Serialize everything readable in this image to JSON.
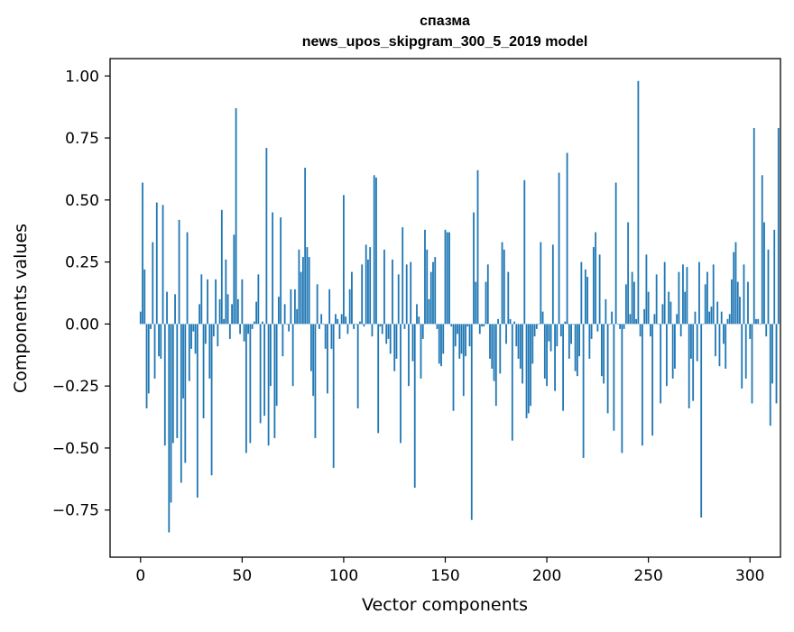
{
  "chart_data": {
    "type": "bar",
    "title": "спазма",
    "subtitle": "news_upos_skipgram_300_5_2019 model",
    "xlabel": "Vector components",
    "ylabel": "Components values",
    "xlim": [
      -15,
      315
    ],
    "ylim": [
      -0.94,
      1.07
    ],
    "x_ticks": [
      0,
      50,
      100,
      150,
      200,
      250,
      300
    ],
    "x_tick_labels": [
      "0",
      "50",
      "100",
      "150",
      "200",
      "250",
      "300"
    ],
    "y_ticks": [
      -0.75,
      -0.5,
      -0.25,
      0.0,
      0.25,
      0.5,
      0.75,
      1.0
    ],
    "y_tick_labels": [
      "−0.75",
      "−0.50",
      "−0.25",
      "0.00",
      "0.25",
      "0.50",
      "0.75",
      "1.00"
    ],
    "grid": false,
    "bar_color": "#1f77b4",
    "values": [
      0.05,
      0.57,
      0.22,
      -0.34,
      -0.28,
      -0.02,
      0.33,
      -0.22,
      0.49,
      -0.13,
      -0.14,
      0.48,
      -0.49,
      0.13,
      -0.84,
      -0.72,
      -0.48,
      0.12,
      -0.46,
      0.42,
      -0.64,
      -0.3,
      -0.56,
      0.37,
      -0.23,
      -0.1,
      -0.03,
      -0.12,
      -0.7,
      0.08,
      0.2,
      -0.38,
      -0.08,
      0.18,
      -0.22,
      -0.61,
      -0.05,
      0.18,
      -0.09,
      0.1,
      0.46,
      0.02,
      0.26,
      0.12,
      -0.06,
      0.08,
      0.36,
      0.87,
      0.1,
      -0.04,
      0.18,
      -0.07,
      -0.52,
      -0.04,
      -0.48,
      -0.02,
      0.01,
      0.09,
      0.2,
      -0.4,
      0.01,
      -0.37,
      0.71,
      -0.49,
      -0.25,
      0.45,
      -0.46,
      -0.33,
      0.11,
      0.43,
      -0.13,
      0.08,
      0.0,
      -0.03,
      0.14,
      -0.25,
      0.14,
      0.06,
      0.3,
      0.21,
      0.27,
      0.63,
      0.31,
      0.27,
      -0.19,
      -0.29,
      -0.46,
      0.16,
      -0.02,
      0.04,
      0.0,
      -0.1,
      -0.28,
      0.14,
      -0.1,
      -0.58,
      0.04,
      0.02,
      -0.06,
      0.04,
      0.52,
      0.03,
      -0.04,
      0.14,
      0.21,
      -0.02,
      0.0,
      -0.34,
      0.01,
      0.24,
      -0.01,
      0.32,
      0.26,
      0.31,
      -0.05,
      0.6,
      0.59,
      -0.44,
      -0.01,
      -0.04,
      0.3,
      -0.08,
      -0.06,
      -0.12,
      0.26,
      -0.19,
      -0.14,
      0.2,
      -0.48,
      0.39,
      -0.02,
      0.24,
      -0.25,
      0.25,
      -0.15,
      -0.66,
      0.08,
      0.03,
      -0.22,
      -0.06,
      0.38,
      0.3,
      0.1,
      0.21,
      0.25,
      0.27,
      -0.02,
      -0.16,
      -0.17,
      -0.12,
      0.38,
      0.37,
      0.37,
      -0.01,
      -0.35,
      -0.09,
      -0.04,
      -0.14,
      -0.12,
      -0.29,
      -0.13,
      -0.01,
      -0.09,
      -0.79,
      0.45,
      0.17,
      0.62,
      -0.04,
      -0.01,
      -0.01,
      0.17,
      0.24,
      -0.14,
      -0.18,
      -0.23,
      -0.33,
      0.02,
      -0.2,
      0.33,
      0.3,
      -0.08,
      0.21,
      0.02,
      -0.47,
      0.01,
      -0.09,
      -0.14,
      -0.18,
      -0.24,
      0.58,
      -0.38,
      -0.36,
      -0.33,
      -0.16,
      -0.05,
      -0.02,
      0.0,
      0.33,
      0.05,
      -0.22,
      -0.25,
      -0.07,
      -0.11,
      0.32,
      -0.27,
      -0.09,
      0.61,
      -0.05,
      -0.35,
      0.01,
      0.69,
      -0.14,
      -0.08,
      0.0,
      -0.19,
      -0.21,
      -0.13,
      0.25,
      -0.54,
      0.22,
      0.19,
      -0.14,
      -0.06,
      0.31,
      0.37,
      -0.03,
      0.28,
      -0.21,
      -0.24,
      0.1,
      -0.36,
      0.0,
      0.05,
      -0.43,
      0.57,
      0.0,
      -0.02,
      -0.52,
      -0.02,
      0.16,
      0.41,
      0.04,
      0.21,
      0.17,
      0.02,
      0.98,
      -0.05,
      -0.49,
      0.06,
      0.28,
      0.13,
      -0.05,
      -0.45,
      0.04,
      0.2,
      0.0,
      -0.32,
      0.08,
      0.25,
      -0.25,
      0.13,
      0.09,
      -0.22,
      -0.18,
      0.04,
      0.21,
      -0.05,
      0.24,
      0.13,
      0.23,
      -0.34,
      -0.14,
      -0.31,
      0.05,
      -0.15,
      0.25,
      -0.78,
      0.0,
      0.16,
      0.21,
      0.05,
      0.07,
      0.24,
      -0.13,
      0.09,
      -0.17,
      0.05,
      -0.08,
      -0.18,
      0.02,
      0.04,
      0.18,
      0.29,
      0.33,
      0.17,
      0.11,
      -0.26,
      0.24,
      -0.22,
      0.17,
      -0.06,
      -0.32,
      0.79,
      0.02,
      0.02,
      0.0,
      0.6,
      0.41,
      -0.05,
      0.3,
      -0.41,
      -0.24,
      0.38,
      -0.32,
      0.79
    ]
  }
}
